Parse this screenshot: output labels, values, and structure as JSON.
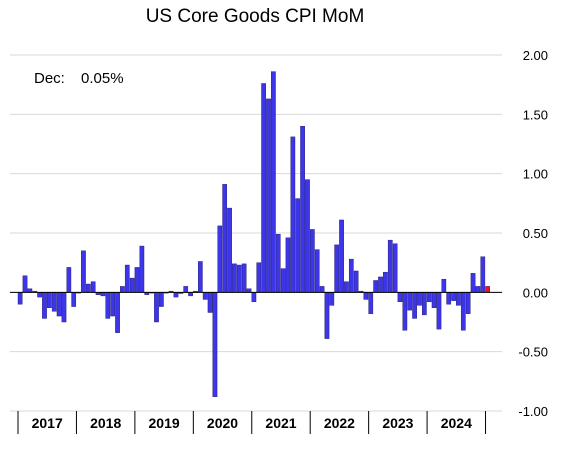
{
  "chart_data": {
    "type": "bar",
    "title": "US Core Goods CPI MoM",
    "annotation": {
      "label": "Dec:",
      "value": "0.05%"
    },
    "xlabel": "",
    "ylabel": "",
    "ylim": [
      -1.0,
      2.0
    ],
    "y_ticks": [
      2.0,
      1.5,
      1.0,
      0.5,
      0.0,
      -0.5,
      -1.0
    ],
    "y_tick_labels": [
      "2.00",
      "1.50",
      "1.00",
      "0.50",
      "0.00",
      "-0.50",
      "-1.00"
    ],
    "y_axis_position": "right",
    "grid": true,
    "legend": "none",
    "x_start": "2017-01",
    "year_labels": [
      "2017",
      "2018",
      "2019",
      "2020",
      "2021",
      "2022",
      "2023",
      "2024"
    ],
    "bar_color": "#3d35e8",
    "highlight_color": "#e8161c",
    "highlight_last": true,
    "values": [
      -0.1,
      0.14,
      0.03,
      0.01,
      -0.04,
      -0.22,
      -0.13,
      -0.16,
      -0.2,
      -0.25,
      0.21,
      -0.12,
      0.0,
      0.35,
      0.07,
      0.09,
      -0.02,
      -0.03,
      -0.22,
      -0.2,
      -0.34,
      0.05,
      0.23,
      0.12,
      0.21,
      0.39,
      -0.02,
      0.0,
      -0.25,
      -0.12,
      0.0,
      0.01,
      -0.04,
      -0.01,
      0.05,
      -0.03,
      0.01,
      0.26,
      -0.06,
      -0.17,
      -0.88,
      0.56,
      0.91,
      0.71,
      0.24,
      0.23,
      0.24,
      0.03,
      -0.08,
      0.25,
      1.76,
      1.63,
      1.86,
      0.49,
      0.2,
      0.46,
      1.31,
      0.79,
      1.4,
      0.95,
      0.53,
      0.36,
      0.05,
      -0.39,
      -0.11,
      0.4,
      0.61,
      0.09,
      0.28,
      0.18,
      0.01,
      -0.06,
      -0.18,
      0.1,
      0.13,
      0.17,
      0.44,
      0.41,
      -0.08,
      -0.32,
      -0.15,
      -0.22,
      -0.11,
      -0.19,
      -0.08,
      -0.13,
      -0.31,
      0.11,
      -0.1,
      -0.07,
      -0.11,
      -0.32,
      -0.18,
      0.16,
      0.05,
      0.3,
      0.05
    ]
  }
}
